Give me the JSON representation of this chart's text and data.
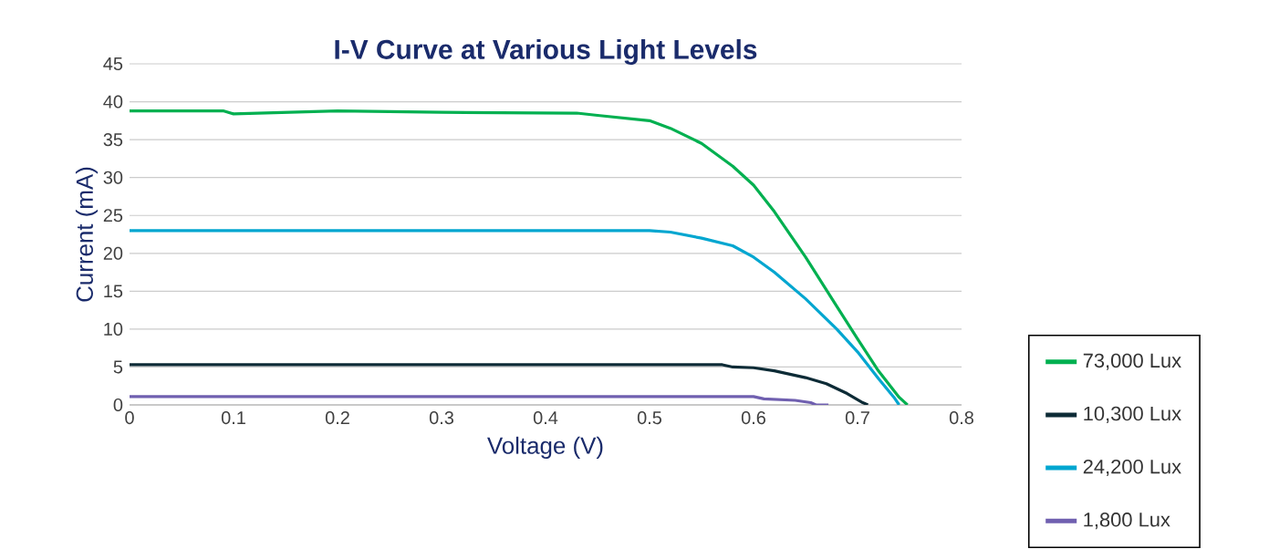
{
  "chart_data": {
    "type": "line",
    "title": "I-V Curve at Various Light Levels",
    "xlabel": "Voltage (V)",
    "ylabel": "Current (mA)",
    "xlim": [
      0,
      0.8
    ],
    "xticks": [
      0,
      0.1,
      0.2,
      0.3,
      0.4,
      0.5,
      0.6,
      0.7,
      0.8
    ],
    "ylim": [
      0,
      45
    ],
    "yticks": [
      0,
      5,
      10,
      15,
      20,
      25,
      30,
      35,
      40,
      45
    ],
    "grid": "y",
    "legend": "right",
    "marker": "none",
    "line_style": "solid",
    "series": [
      {
        "name": "73,000 Lux",
        "color": "#00b050",
        "x": [
          0,
          0.09,
          0.1,
          0.2,
          0.3,
          0.43,
          0.45,
          0.5,
          0.52,
          0.55,
          0.58,
          0.6,
          0.62,
          0.65,
          0.68,
          0.7,
          0.72,
          0.74,
          0.748
        ],
        "values": [
          38.8,
          38.8,
          38.4,
          38.8,
          38.6,
          38.5,
          38.2,
          37.5,
          36.5,
          34.5,
          31.5,
          29,
          25.5,
          19.5,
          13,
          8.7,
          4.5,
          1,
          0
        ]
      },
      {
        "name": "10,300 Lux",
        "color": "#0d2b36",
        "x": [
          0,
          0.3,
          0.57,
          0.58,
          0.6,
          0.62,
          0.65,
          0.67,
          0.69,
          0.705,
          0.71
        ],
        "values": [
          5.3,
          5.3,
          5.3,
          5.0,
          4.9,
          4.5,
          3.6,
          2.8,
          1.5,
          0.3,
          0
        ]
      },
      {
        "name": "24,200 Lux",
        "color": "#00a6d0",
        "x": [
          0,
          0.2,
          0.4,
          0.5,
          0.52,
          0.55,
          0.58,
          0.6,
          0.62,
          0.65,
          0.68,
          0.7,
          0.72,
          0.735,
          0.74
        ],
        "values": [
          23,
          23,
          23,
          23,
          22.8,
          22,
          21,
          19.5,
          17.5,
          14,
          10,
          7,
          3.5,
          1,
          0
        ]
      },
      {
        "name": "1,800 Lux",
        "color": "#7060b0",
        "x": [
          0,
          0.3,
          0.6,
          0.61,
          0.64,
          0.655,
          0.66,
          0.672
        ],
        "values": [
          1.1,
          1.1,
          1.1,
          0.8,
          0.6,
          0.3,
          0,
          0
        ]
      }
    ]
  }
}
